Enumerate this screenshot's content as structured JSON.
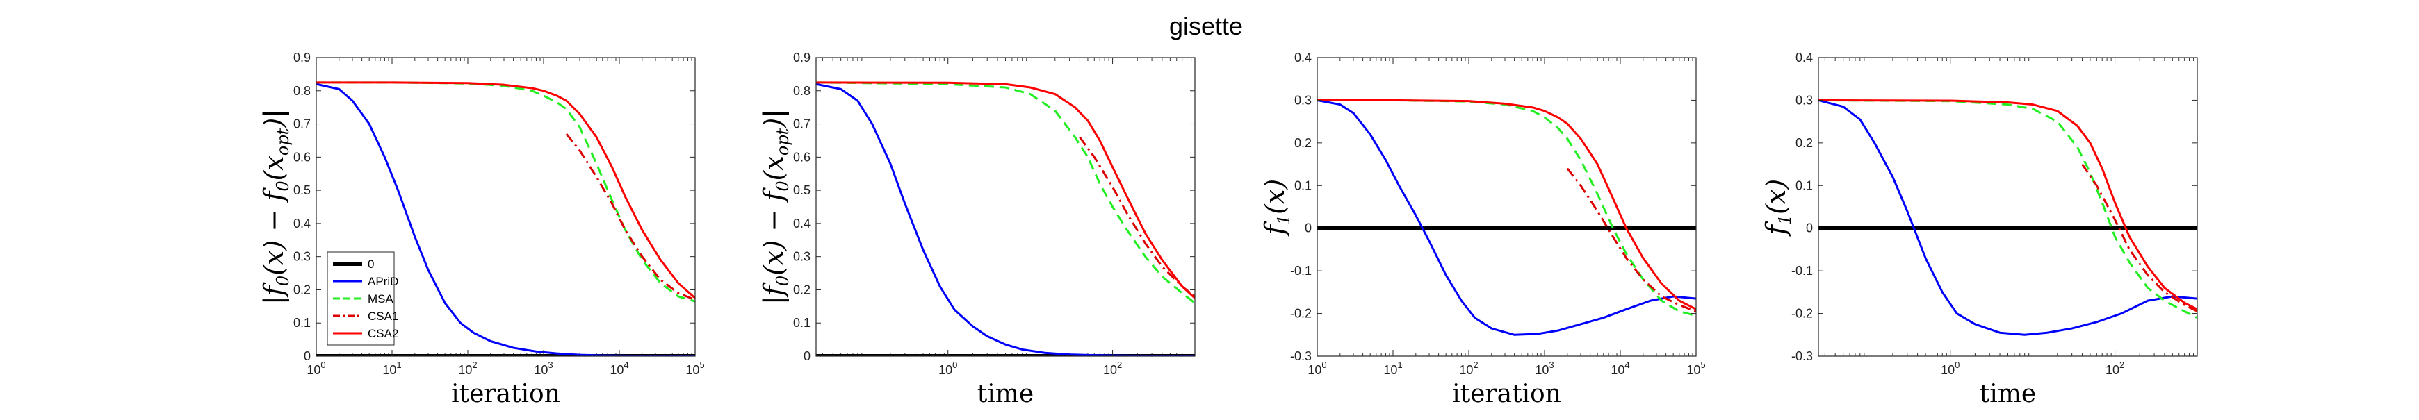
{
  "figure_title": "gisette",
  "chart_data": [
    {
      "id": "p1",
      "type": "line",
      "xscale": "log",
      "xlim": [
        1,
        100000
      ],
      "ylim": [
        0,
        0.9
      ],
      "yticks": [
        0,
        0.1,
        0.2,
        0.3,
        0.4,
        0.5,
        0.6,
        0.7,
        0.8,
        0.9
      ],
      "yticklabels": [
        "0",
        "0.1",
        "0.2",
        "0.3",
        "0.4",
        "0.5",
        "0.6",
        "0.7",
        "0.8",
        "0.9"
      ],
      "xticks": [
        1,
        10,
        100,
        1000,
        10000,
        100000
      ],
      "xticklabels": [
        [
          "10",
          "0"
        ],
        [
          "10",
          "1"
        ],
        [
          "10",
          "2"
        ],
        [
          "10",
          "3"
        ],
        [
          "10",
          "4"
        ],
        [
          "10",
          "5"
        ]
      ],
      "xlabel": "iteration",
      "ylabel_parts": [
        [
          "|f",
          ""
        ],
        [
          "0",
          "sub"
        ],
        [
          "(x) − f",
          ""
        ],
        [
          "0",
          "sub"
        ],
        [
          "(x",
          ""
        ],
        [
          "opt",
          "sub"
        ],
        [
          ")|",
          ""
        ]
      ],
      "legend": {
        "position": "lower-left",
        "entries": [
          "0",
          "APriD",
          "MSA",
          "CSA1",
          "CSA2"
        ]
      },
      "series": [
        {
          "name": "0",
          "color": "#000000",
          "style": "solid",
          "width": 6,
          "x": [
            1,
            100000
          ],
          "y": [
            0,
            0
          ]
        },
        {
          "name": "APriD",
          "color": "#0000ff",
          "style": "solid",
          "width": 3,
          "x": [
            1,
            2,
            3,
            5,
            8,
            12,
            20,
            30,
            50,
            80,
            120,
            200,
            400,
            800,
            1500,
            3000,
            6000,
            15000,
            40000,
            100000
          ],
          "y": [
            0.82,
            0.805,
            0.77,
            0.7,
            0.6,
            0.5,
            0.36,
            0.26,
            0.16,
            0.1,
            0.07,
            0.045,
            0.025,
            0.014,
            0.008,
            0.004,
            0.002,
            0.001,
            0.0005,
            0.0003
          ]
        },
        {
          "name": "MSA",
          "color": "#22ee22",
          "style": "dashed",
          "width": 3,
          "x": [
            1,
            10,
            100,
            300,
            700,
            1000,
            1500,
            2000,
            3000,
            5000,
            8000,
            12000,
            20000,
            35000,
            60000,
            100000
          ],
          "y": [
            0.825,
            0.825,
            0.822,
            0.815,
            0.8,
            0.785,
            0.765,
            0.745,
            0.69,
            0.58,
            0.47,
            0.38,
            0.29,
            0.22,
            0.18,
            0.165
          ]
        },
        {
          "name": "CSA1",
          "color": "#dd0000",
          "style": "dashdot",
          "width": 3,
          "x": [
            2000,
            3000,
            5000,
            8000,
            12000,
            20000,
            35000,
            60000,
            100000
          ],
          "y": [
            0.67,
            0.62,
            0.54,
            0.46,
            0.38,
            0.3,
            0.23,
            0.19,
            0.17
          ]
        },
        {
          "name": "CSA2",
          "color": "#ff0000",
          "style": "solid",
          "width": 3,
          "x": [
            1,
            10,
            100,
            300,
            700,
            1000,
            1500,
            2000,
            3000,
            5000,
            8000,
            12000,
            20000,
            35000,
            60000,
            100000
          ],
          "y": [
            0.825,
            0.825,
            0.823,
            0.818,
            0.808,
            0.8,
            0.785,
            0.77,
            0.73,
            0.66,
            0.57,
            0.48,
            0.38,
            0.29,
            0.22,
            0.175
          ]
        }
      ]
    },
    {
      "id": "p2",
      "type": "line",
      "xscale": "log",
      "xlim": [
        0.025,
        1000
      ],
      "ylim": [
        0,
        0.9
      ],
      "yticks": [
        0,
        0.1,
        0.2,
        0.3,
        0.4,
        0.5,
        0.6,
        0.7,
        0.8,
        0.9
      ],
      "yticklabels": [
        "0",
        "0.1",
        "0.2",
        "0.3",
        "0.4",
        "0.5",
        "0.6",
        "0.7",
        "0.8",
        "0.9"
      ],
      "xticks": [
        1,
        100
      ],
      "xticklabels": [
        [
          "10",
          "0"
        ],
        [
          "10",
          "2"
        ]
      ],
      "xlabel": "time",
      "ylabel_parts": [
        [
          "|f",
          ""
        ],
        [
          "0",
          "sub"
        ],
        [
          "(x) − f",
          ""
        ],
        [
          "0",
          "sub"
        ],
        [
          "(x",
          ""
        ],
        [
          "opt",
          "sub"
        ],
        [
          ")|",
          ""
        ]
      ],
      "series": [
        {
          "name": "0",
          "color": "#000000",
          "style": "solid",
          "width": 6,
          "x": [
            0.025,
            1000
          ],
          "y": [
            0,
            0
          ]
        },
        {
          "name": "APriD",
          "color": "#0000ff",
          "style": "solid",
          "width": 3,
          "x": [
            0.025,
            0.05,
            0.08,
            0.12,
            0.2,
            0.3,
            0.5,
            0.8,
            1.2,
            2,
            3,
            5,
            8,
            15,
            30,
            60,
            150,
            400,
            1000
          ],
          "y": [
            0.82,
            0.805,
            0.77,
            0.7,
            0.58,
            0.46,
            0.32,
            0.21,
            0.14,
            0.09,
            0.06,
            0.035,
            0.02,
            0.01,
            0.005,
            0.003,
            0.0015,
            0.0008,
            0.0005
          ]
        },
        {
          "name": "MSA",
          "color": "#22ee22",
          "style": "dashed",
          "width": 3,
          "x": [
            0.025,
            1,
            5,
            10,
            20,
            35,
            50,
            70,
            100,
            150,
            250,
            400,
            700,
            1000
          ],
          "y": [
            0.825,
            0.82,
            0.81,
            0.79,
            0.74,
            0.66,
            0.6,
            0.52,
            0.45,
            0.38,
            0.3,
            0.24,
            0.19,
            0.16
          ]
        },
        {
          "name": "CSA1",
          "color": "#dd0000",
          "style": "dashdot",
          "width": 3,
          "x": [
            40,
            60,
            100,
            150,
            250,
            400,
            700,
            1000
          ],
          "y": [
            0.66,
            0.6,
            0.51,
            0.43,
            0.34,
            0.27,
            0.21,
            0.18
          ]
        },
        {
          "name": "CSA2",
          "color": "#ff0000",
          "style": "solid",
          "width": 3,
          "x": [
            0.025,
            1,
            5,
            10,
            20,
            35,
            50,
            70,
            100,
            150,
            250,
            400,
            700,
            1000
          ],
          "y": [
            0.825,
            0.824,
            0.82,
            0.81,
            0.79,
            0.75,
            0.71,
            0.65,
            0.57,
            0.48,
            0.37,
            0.29,
            0.21,
            0.175
          ]
        }
      ]
    },
    {
      "id": "p3",
      "type": "line",
      "xscale": "log",
      "xlim": [
        1,
        100000
      ],
      "ylim": [
        -0.3,
        0.4
      ],
      "yticks": [
        -0.3,
        -0.2,
        -0.1,
        0,
        0.1,
        0.2,
        0.3,
        0.4
      ],
      "yticklabels": [
        "-0.3",
        "-0.2",
        "-0.1",
        "0",
        "0.1",
        "0.2",
        "0.3",
        "0.4"
      ],
      "xticks": [
        1,
        10,
        100,
        1000,
        10000,
        100000
      ],
      "xticklabels": [
        [
          "10",
          "0"
        ],
        [
          "10",
          "1"
        ],
        [
          "10",
          "2"
        ],
        [
          "10",
          "3"
        ],
        [
          "10",
          "4"
        ],
        [
          "10",
          "5"
        ]
      ],
      "xlabel": "iteration",
      "ylabel_parts": [
        [
          "f",
          ""
        ],
        [
          "1",
          "sub"
        ],
        [
          "(x)",
          ""
        ]
      ],
      "series": [
        {
          "name": "0",
          "color": "#000000",
          "style": "solid",
          "width": 6,
          "x": [
            1,
            100000
          ],
          "y": [
            0,
            0
          ]
        },
        {
          "name": "APriD",
          "color": "#0000ff",
          "style": "solid",
          "width": 3,
          "x": [
            1,
            2,
            3,
            5,
            8,
            12,
            20,
            30,
            50,
            80,
            120,
            200,
            400,
            800,
            1500,
            3000,
            6000,
            12000,
            25000,
            50000,
            100000
          ],
          "y": [
            0.3,
            0.29,
            0.27,
            0.22,
            0.16,
            0.1,
            0.03,
            -0.03,
            -0.11,
            -0.17,
            -0.21,
            -0.235,
            -0.25,
            -0.248,
            -0.24,
            -0.225,
            -0.21,
            -0.19,
            -0.17,
            -0.16,
            -0.165
          ]
        },
        {
          "name": "MSA",
          "color": "#22ee22",
          "style": "dashed",
          "width": 3,
          "x": [
            1,
            10,
            100,
            300,
            700,
            1000,
            1500,
            2000,
            3000,
            5000,
            8000,
            12000,
            20000,
            35000,
            60000,
            100000
          ],
          "y": [
            0.3,
            0.3,
            0.297,
            0.29,
            0.275,
            0.26,
            0.235,
            0.21,
            0.16,
            0.08,
            0.0,
            -0.06,
            -0.12,
            -0.17,
            -0.195,
            -0.205
          ]
        },
        {
          "name": "CSA1",
          "color": "#dd0000",
          "style": "dashdot",
          "width": 3,
          "x": [
            2000,
            3000,
            5000,
            8000,
            12000,
            20000,
            35000,
            60000,
            100000
          ],
          "y": [
            0.14,
            0.1,
            0.04,
            -0.02,
            -0.07,
            -0.12,
            -0.16,
            -0.18,
            -0.195
          ]
        },
        {
          "name": "CSA2",
          "color": "#ff0000",
          "style": "solid",
          "width": 3,
          "x": [
            1,
            10,
            100,
            300,
            700,
            1000,
            1500,
            2000,
            3000,
            5000,
            8000,
            12000,
            20000,
            35000,
            60000,
            100000
          ],
          "y": [
            0.3,
            0.3,
            0.298,
            0.292,
            0.283,
            0.275,
            0.26,
            0.245,
            0.21,
            0.15,
            0.07,
            0.0,
            -0.07,
            -0.13,
            -0.17,
            -0.19
          ]
        }
      ]
    },
    {
      "id": "p4",
      "type": "line",
      "xscale": "log",
      "xlim": [
        0.025,
        1000
      ],
      "ylim": [
        -0.3,
        0.4
      ],
      "yticks": [
        -0.3,
        -0.2,
        -0.1,
        0,
        0.1,
        0.2,
        0.3,
        0.4
      ],
      "yticklabels": [
        "-0.3",
        "-0.2",
        "-0.1",
        "0",
        "0.1",
        "0.2",
        "0.3",
        "0.4"
      ],
      "xticks": [
        1,
        100
      ],
      "xticklabels": [
        [
          "10",
          "0"
        ],
        [
          "10",
          "2"
        ]
      ],
      "xlabel": "time",
      "ylabel_parts": [
        [
          "f",
          ""
        ],
        [
          "1",
          "sub"
        ],
        [
          "(x)",
          ""
        ]
      ],
      "series": [
        {
          "name": "0",
          "color": "#000000",
          "style": "solid",
          "width": 6,
          "x": [
            0.025,
            1000
          ],
          "y": [
            0,
            0
          ]
        },
        {
          "name": "APriD",
          "color": "#0000ff",
          "style": "solid",
          "width": 3,
          "x": [
            0.025,
            0.05,
            0.08,
            0.12,
            0.2,
            0.3,
            0.5,
            0.8,
            1.2,
            2,
            4,
            8,
            15,
            30,
            60,
            120,
            250,
            500,
            1000
          ],
          "y": [
            0.3,
            0.285,
            0.255,
            0.2,
            0.12,
            0.04,
            -0.07,
            -0.15,
            -0.2,
            -0.225,
            -0.245,
            -0.25,
            -0.245,
            -0.235,
            -0.22,
            -0.2,
            -0.17,
            -0.16,
            -0.165
          ]
        },
        {
          "name": "MSA",
          "color": "#22ee22",
          "style": "dashed",
          "width": 3,
          "x": [
            0.025,
            1,
            5,
            10,
            20,
            35,
            50,
            70,
            100,
            150,
            250,
            400,
            700,
            1000
          ],
          "y": [
            0.3,
            0.298,
            0.29,
            0.28,
            0.25,
            0.19,
            0.13,
            0.06,
            -0.02,
            -0.08,
            -0.14,
            -0.17,
            -0.195,
            -0.21
          ]
        },
        {
          "name": "CSA1",
          "color": "#dd0000",
          "style": "dashdot",
          "width": 3,
          "x": [
            40,
            60,
            100,
            150,
            250,
            400,
            700,
            1000
          ],
          "y": [
            0.15,
            0.1,
            0.02,
            -0.05,
            -0.11,
            -0.15,
            -0.18,
            -0.195
          ]
        },
        {
          "name": "CSA2",
          "color": "#ff0000",
          "style": "solid",
          "width": 3,
          "x": [
            0.025,
            1,
            5,
            10,
            20,
            35,
            50,
            70,
            100,
            150,
            250,
            400,
            700,
            1000
          ],
          "y": [
            0.3,
            0.299,
            0.295,
            0.29,
            0.275,
            0.24,
            0.2,
            0.14,
            0.06,
            -0.02,
            -0.09,
            -0.14,
            -0.175,
            -0.19
          ]
        }
      ]
    }
  ]
}
